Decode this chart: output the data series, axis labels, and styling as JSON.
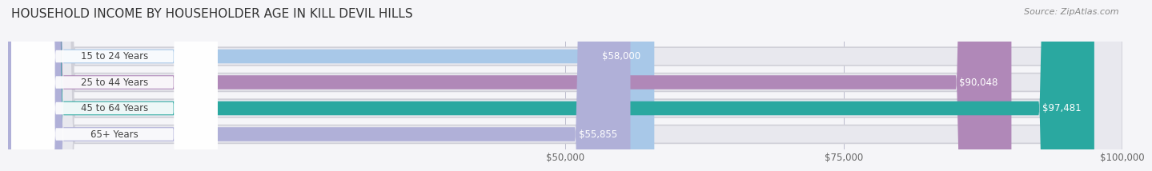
{
  "title": "HOUSEHOLD INCOME BY HOUSEHOLDER AGE IN KILL DEVIL HILLS",
  "source": "Source: ZipAtlas.com",
  "categories": [
    "15 to 24 Years",
    "25 to 44 Years",
    "45 to 64 Years",
    "65+ Years"
  ],
  "values": [
    58000,
    90048,
    97481,
    55855
  ],
  "labels": [
    "$58,000",
    "$90,048",
    "$97,481",
    "$55,855"
  ],
  "bar_colors": [
    "#a8c8e8",
    "#b088b8",
    "#2aa8a0",
    "#b0b0d8"
  ],
  "bar_track_color": "#e8e8ee",
  "xlim": [
    0,
    100000
  ],
  "xticks": [
    50000,
    75000,
    100000
  ],
  "xticklabels": [
    "$50,000",
    "$75,000",
    "$100,000"
  ],
  "background_color": "#f5f5f8",
  "title_fontsize": 11,
  "label_fontsize": 8.5,
  "ylabel_fontsize": 8.5,
  "source_fontsize": 8
}
